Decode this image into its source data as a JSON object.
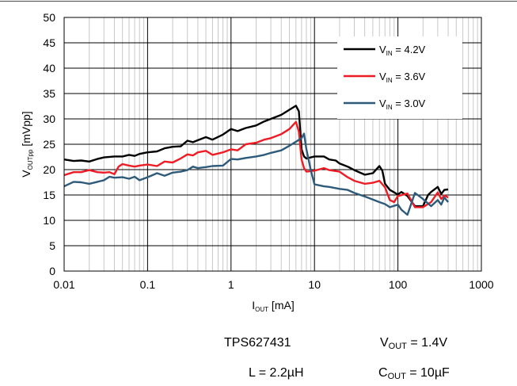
{
  "chart_data": {
    "type": "line",
    "x_scale": "log",
    "xlim": [
      0.01,
      1000
    ],
    "ylim": [
      0,
      50
    ],
    "grid": true,
    "legend_position": "top-right",
    "xlabel": {
      "main": "I",
      "sub": "OUT",
      "rest": " [mA]"
    },
    "ylabel": {
      "main": "V",
      "sub": "OUTpp",
      "rest": " [mVpp]"
    },
    "x_ticks": [
      {
        "value": 0.01,
        "label": "0.01"
      },
      {
        "value": 0.1,
        "label": "0.1"
      },
      {
        "value": 1,
        "label": "1"
      },
      {
        "value": 10,
        "label": "10"
      },
      {
        "value": 100,
        "label": "100"
      },
      {
        "value": 1000,
        "label": "1000"
      }
    ],
    "y_ticks": [
      {
        "value": 0,
        "label": "0"
      },
      {
        "value": 5,
        "label": "5"
      },
      {
        "value": 10,
        "label": "10"
      },
      {
        "value": 15,
        "label": "15"
      },
      {
        "value": 20,
        "label": "20"
      },
      {
        "value": 25,
        "label": "25"
      },
      {
        "value": 30,
        "label": "30"
      },
      {
        "value": 35,
        "label": "35"
      },
      {
        "value": 40,
        "label": "40"
      },
      {
        "value": 45,
        "label": "45"
      },
      {
        "value": 50,
        "label": "50"
      }
    ],
    "series": [
      {
        "name": "VIN = 4.2V",
        "legend": {
          "main": "V",
          "sub": "IN",
          "rest": " = 4.2V"
        },
        "color": "#000000",
        "points": [
          [
            0.01,
            22.0
          ],
          [
            0.013,
            21.7
          ],
          [
            0.016,
            21.8
          ],
          [
            0.02,
            21.6
          ],
          [
            0.025,
            22.1
          ],
          [
            0.03,
            22.4
          ],
          [
            0.04,
            22.6
          ],
          [
            0.05,
            22.6
          ],
          [
            0.06,
            22.9
          ],
          [
            0.07,
            22.7
          ],
          [
            0.08,
            23.1
          ],
          [
            0.1,
            23.4
          ],
          [
            0.13,
            23.6
          ],
          [
            0.16,
            24.2
          ],
          [
            0.2,
            24.5
          ],
          [
            0.25,
            24.6
          ],
          [
            0.3,
            25.7
          ],
          [
            0.35,
            25.4
          ],
          [
            0.4,
            25.8
          ],
          [
            0.5,
            26.4
          ],
          [
            0.6,
            25.9
          ],
          [
            0.8,
            26.9
          ],
          [
            1.0,
            28.0
          ],
          [
            1.2,
            27.6
          ],
          [
            1.5,
            28.2
          ],
          [
            2.0,
            28.7
          ],
          [
            2.5,
            29.5
          ],
          [
            3.0,
            30.0
          ],
          [
            4.0,
            30.8
          ],
          [
            5.0,
            31.8
          ],
          [
            6.0,
            32.6
          ],
          [
            6.5,
            31.5
          ],
          [
            7.0,
            24.0
          ],
          [
            7.5,
            22.6
          ],
          [
            8.0,
            22.2
          ],
          [
            10,
            22.6
          ],
          [
            13,
            22.6
          ],
          [
            15,
            22.0
          ],
          [
            18,
            21.8
          ],
          [
            20,
            21.2
          ],
          [
            25,
            20.6
          ],
          [
            30,
            19.9
          ],
          [
            40,
            19.0
          ],
          [
            50,
            19.3
          ],
          [
            60,
            20.7
          ],
          [
            65,
            19.8
          ],
          [
            70,
            17.2
          ],
          [
            80,
            16.0
          ],
          [
            100,
            15.1
          ],
          [
            110,
            15.6
          ],
          [
            130,
            14.8
          ],
          [
            160,
            12.8
          ],
          [
            200,
            12.8
          ],
          [
            230,
            15.0
          ],
          [
            250,
            15.6
          ],
          [
            300,
            16.6
          ],
          [
            330,
            15.2
          ],
          [
            360,
            16.0
          ],
          [
            400,
            16.1
          ]
        ]
      },
      {
        "name": "VIN = 3.6V",
        "legend": {
          "main": "V",
          "sub": "IN",
          "rest": " = 3.6V"
        },
        "color": "#ee1c25",
        "points": [
          [
            0.01,
            18.9
          ],
          [
            0.013,
            19.5
          ],
          [
            0.016,
            19.5
          ],
          [
            0.02,
            19.9
          ],
          [
            0.025,
            19.5
          ],
          [
            0.03,
            19.4
          ],
          [
            0.035,
            19.5
          ],
          [
            0.04,
            19.1
          ],
          [
            0.045,
            20.6
          ],
          [
            0.05,
            21.1
          ],
          [
            0.06,
            20.8
          ],
          [
            0.07,
            20.6
          ],
          [
            0.08,
            20.8
          ],
          [
            0.1,
            21.0
          ],
          [
            0.13,
            20.7
          ],
          [
            0.16,
            21.6
          ],
          [
            0.2,
            21.4
          ],
          [
            0.25,
            22.2
          ],
          [
            0.3,
            23.0
          ],
          [
            0.35,
            22.8
          ],
          [
            0.4,
            23.4
          ],
          [
            0.5,
            23.7
          ],
          [
            0.6,
            22.9
          ],
          [
            0.8,
            23.4
          ],
          [
            1.0,
            24.0
          ],
          [
            1.2,
            23.8
          ],
          [
            1.5,
            25.0
          ],
          [
            2.0,
            25.3
          ],
          [
            2.5,
            25.9
          ],
          [
            3.0,
            26.2
          ],
          [
            4.0,
            27.0
          ],
          [
            5.0,
            28.0
          ],
          [
            6.0,
            29.4
          ],
          [
            6.5,
            27.5
          ],
          [
            7.0,
            22.0
          ],
          [
            7.5,
            20.3
          ],
          [
            8.0,
            19.6
          ],
          [
            10,
            19.8
          ],
          [
            13,
            20.3
          ],
          [
            15,
            19.9
          ],
          [
            20,
            19.6
          ],
          [
            25,
            18.5
          ],
          [
            30,
            17.8
          ],
          [
            40,
            17.2
          ],
          [
            50,
            17.4
          ],
          [
            60,
            17.8
          ],
          [
            70,
            16.5
          ],
          [
            80,
            14.0
          ],
          [
            90,
            13.6
          ],
          [
            100,
            14.8
          ],
          [
            130,
            15.3
          ],
          [
            160,
            12.6
          ],
          [
            200,
            12.6
          ],
          [
            250,
            13.6
          ],
          [
            300,
            15.5
          ],
          [
            330,
            14.2
          ],
          [
            360,
            14.9
          ],
          [
            400,
            14.5
          ]
        ]
      },
      {
        "name": "VIN = 3.0V",
        "legend": {
          "main": "V",
          "sub": "IN",
          "rest": " = 3.0V"
        },
        "color": "#2f5b7a",
        "points": [
          [
            0.01,
            16.7
          ],
          [
            0.013,
            17.6
          ],
          [
            0.016,
            17.5
          ],
          [
            0.02,
            17.2
          ],
          [
            0.025,
            17.6
          ],
          [
            0.03,
            17.9
          ],
          [
            0.035,
            18.6
          ],
          [
            0.04,
            18.4
          ],
          [
            0.05,
            18.5
          ],
          [
            0.06,
            18.2
          ],
          [
            0.07,
            18.6
          ],
          [
            0.08,
            17.9
          ],
          [
            0.1,
            18.5
          ],
          [
            0.13,
            19.3
          ],
          [
            0.16,
            18.8
          ],
          [
            0.2,
            19.4
          ],
          [
            0.25,
            19.6
          ],
          [
            0.3,
            19.9
          ],
          [
            0.35,
            20.6
          ],
          [
            0.4,
            20.3
          ],
          [
            0.5,
            20.5
          ],
          [
            0.6,
            20.7
          ],
          [
            0.8,
            20.8
          ],
          [
            1.0,
            22.1
          ],
          [
            1.2,
            22.0
          ],
          [
            1.5,
            22.3
          ],
          [
            2.0,
            22.6
          ],
          [
            2.5,
            22.9
          ],
          [
            3.0,
            23.3
          ],
          [
            4.0,
            23.8
          ],
          [
            5.0,
            24.7
          ],
          [
            6.0,
            25.5
          ],
          [
            7.0,
            26.2
          ],
          [
            7.5,
            27.1
          ],
          [
            8.0,
            24.0
          ],
          [
            9.0,
            20.0
          ],
          [
            10,
            17.1
          ],
          [
            13,
            16.7
          ],
          [
            15,
            16.6
          ],
          [
            20,
            16.2
          ],
          [
            25,
            16.0
          ],
          [
            30,
            15.4
          ],
          [
            40,
            14.7
          ],
          [
            50,
            14.1
          ],
          [
            60,
            13.6
          ],
          [
            70,
            13.2
          ],
          [
            80,
            12.6
          ],
          [
            100,
            13.1
          ],
          [
            110,
            12.1
          ],
          [
            130,
            11.1
          ],
          [
            160,
            15.4
          ],
          [
            200,
            14.2
          ],
          [
            250,
            12.8
          ],
          [
            300,
            14.0
          ],
          [
            330,
            13.1
          ],
          [
            360,
            14.5
          ],
          [
            400,
            13.6
          ]
        ]
      }
    ]
  },
  "notes": {
    "device": "TPS627431",
    "vout": {
      "main": "V",
      "sub": "OUT",
      "rest": " = 1.4V"
    },
    "inductor": "L = 2.2µH",
    "cout": {
      "main": "C",
      "sub": "OUT",
      "rest": " = 10µF"
    }
  }
}
